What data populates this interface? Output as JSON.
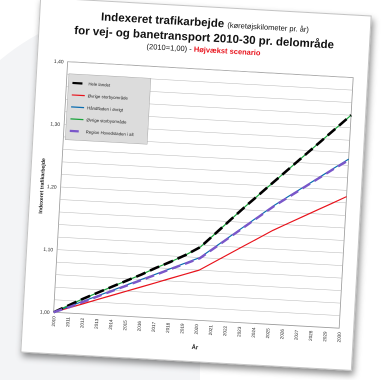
{
  "title": {
    "line1_main": "Indexeret trafikarbejde",
    "line1_note": "(køretøjskilometer pr. år)",
    "line2": "for vej- og banetransport 2010-30 pr. delområde",
    "base": "(2010=1,00) -",
    "scenario": "Højvækst scenario"
  },
  "colors": {
    "total": "#000000",
    "other_cities": "#e8121b",
    "hand_finger": "#0a6db0",
    "other_city_area": "#18a33a",
    "capital_region": "#7a57c9"
  },
  "chart_data": {
    "type": "line",
    "ylabel": "Indexeret trafikarbejde",
    "xlabel": "År",
    "ylim": [
      1.0,
      1.4
    ],
    "yticks": [
      "1,00",
      "1,10",
      "1,20",
      "1,30",
      "1,40"
    ],
    "grid": true,
    "legend_position": "top-left",
    "x": [
      "2010",
      "2011",
      "2012",
      "2013",
      "2014",
      "2015",
      "2016",
      "2017",
      "2018",
      "2019",
      "2020",
      "2021",
      "2022",
      "2023",
      "2024",
      "2025",
      "2026",
      "2027",
      "2028",
      "2029",
      "2030"
    ],
    "series": [
      {
        "name": "Hele landet",
        "color": "#000000",
        "dash": "10 5",
        "width": 2.6,
        "values": [
          1.0,
          1.012,
          1.024,
          1.035,
          1.046,
          1.057,
          1.068,
          1.08,
          1.091,
          1.103,
          1.117,
          1.14,
          1.163,
          1.186,
          1.208,
          1.23,
          1.252,
          1.274,
          1.296,
          1.318,
          1.34
        ]
      },
      {
        "name": "Øvrige storbyområde",
        "color": "#e8121b",
        "dash": "",
        "width": 1.2,
        "values": [
          1.0,
          1.008,
          1.016,
          1.024,
          1.032,
          1.04,
          1.048,
          1.056,
          1.064,
          1.072,
          1.08,
          1.094,
          1.108,
          1.122,
          1.136,
          1.15,
          1.162,
          1.174,
          1.186,
          1.198,
          1.21
        ]
      },
      {
        "name": "Håndfladen i øvrigt",
        "color": "#0a6db0",
        "dash": "",
        "width": 1.2,
        "values": [
          1.0,
          1.01,
          1.02,
          1.03,
          1.04,
          1.05,
          1.06,
          1.07,
          1.08,
          1.09,
          1.1,
          1.118,
          1.136,
          1.154,
          1.172,
          1.19,
          1.206,
          1.222,
          1.238,
          1.254,
          1.27
        ]
      },
      {
        "name": "Øvrige storbyområde",
        "color": "#18a33a",
        "dash": "",
        "width": 1.2,
        "values": [
          1.0,
          1.012,
          1.024,
          1.035,
          1.046,
          1.057,
          1.068,
          1.08,
          1.091,
          1.103,
          1.117,
          1.14,
          1.163,
          1.186,
          1.208,
          1.23,
          1.252,
          1.274,
          1.296,
          1.318,
          1.34
        ]
      },
      {
        "name": "Region Hovedstaden i alt",
        "color": "#7a57c9",
        "dash": "9 5",
        "width": 2.4,
        "values": [
          1.0,
          1.009,
          1.019,
          1.029,
          1.039,
          1.049,
          1.059,
          1.069,
          1.079,
          1.089,
          1.099,
          1.117,
          1.135,
          1.153,
          1.171,
          1.189,
          1.205,
          1.221,
          1.237,
          1.253,
          1.268
        ]
      }
    ]
  }
}
